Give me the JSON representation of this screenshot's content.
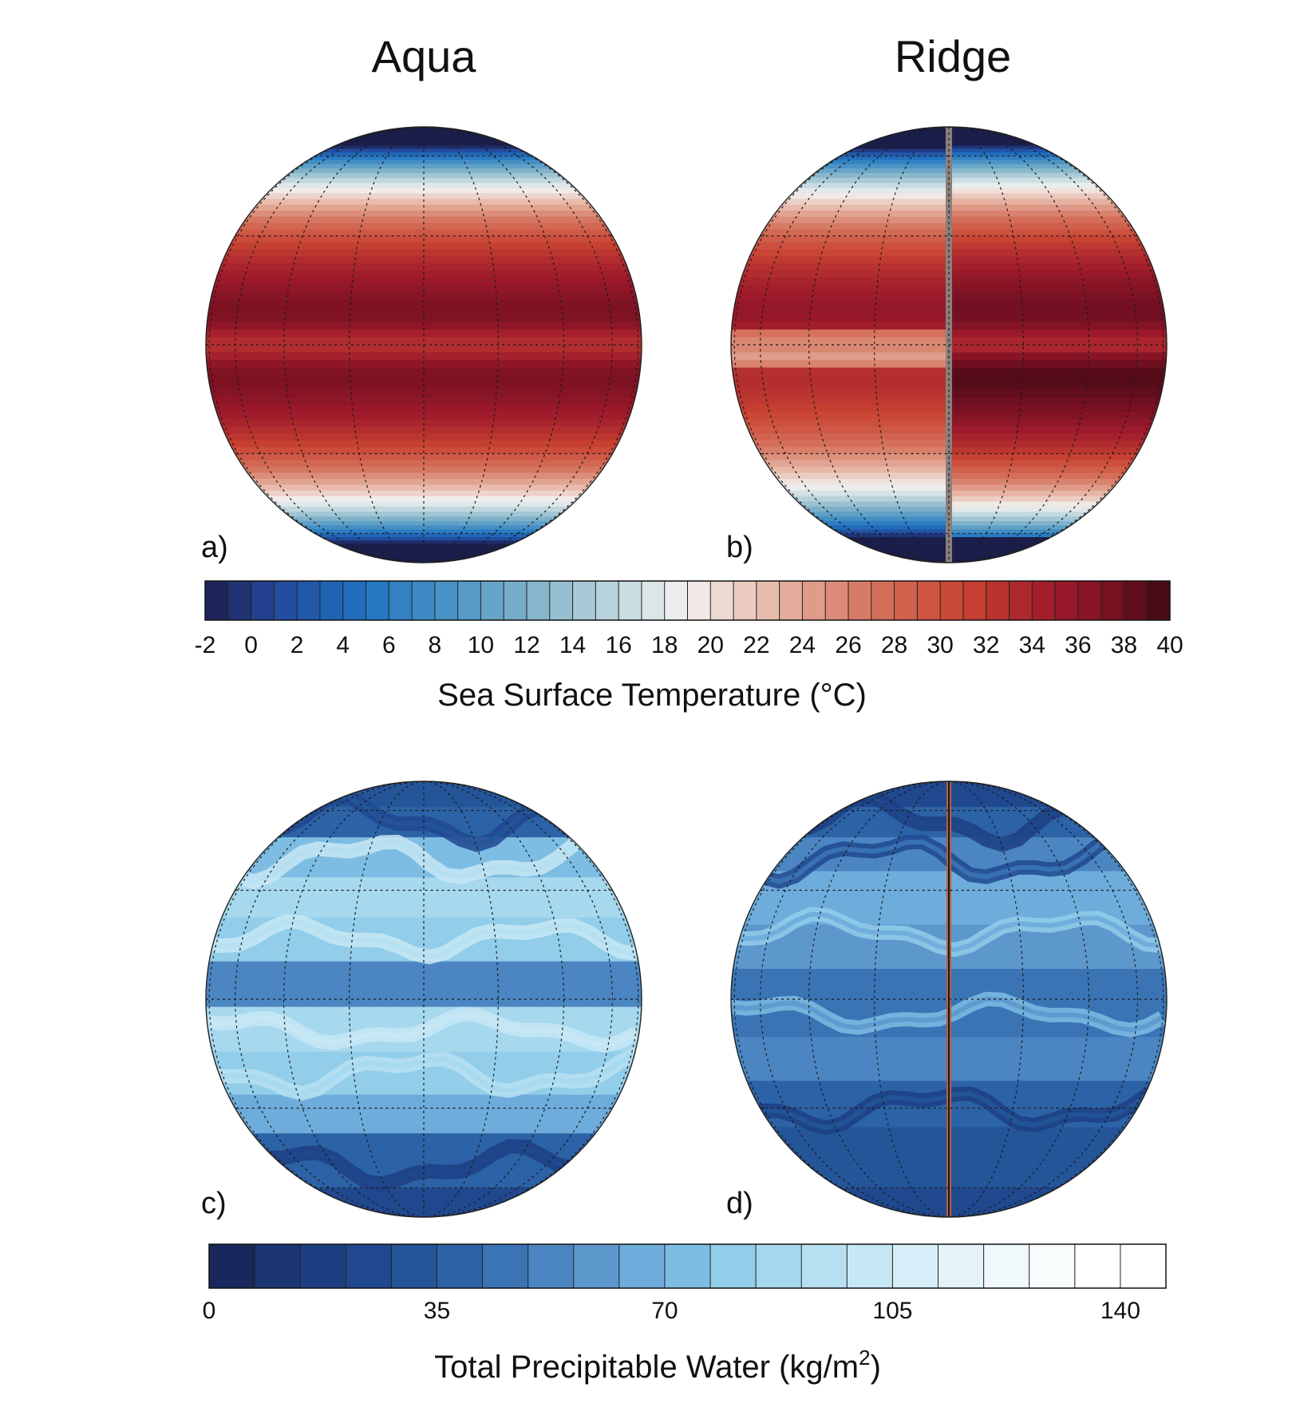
{
  "columns": [
    {
      "title": "Aqua"
    },
    {
      "title": "Ridge"
    }
  ],
  "panels": [
    {
      "label": "a)",
      "variable": "sst",
      "ridge": false
    },
    {
      "label": "b)",
      "variable": "sst",
      "ridge": true
    },
    {
      "label": "c)",
      "variable": "tpw",
      "ridge": false
    },
    {
      "label": "d)",
      "variable": "tpw",
      "ridge": true
    }
  ],
  "sst_colorbar": {
    "title": "Sea Surface Temperature (°C)",
    "min": -2,
    "max": 40,
    "step": 1,
    "tick_labels": [
      "-2",
      "0",
      "2",
      "4",
      "6",
      "8",
      "10",
      "12",
      "14",
      "16",
      "18",
      "20",
      "22",
      "24",
      "26",
      "28",
      "30",
      "32",
      "34",
      "36",
      "38",
      "40"
    ],
    "color_stops": [
      {
        "v": -2,
        "c": "#1b1e4b"
      },
      {
        "v": 1,
        "c": "#24479b"
      },
      {
        "v": 5,
        "c": "#1f74c2"
      },
      {
        "v": 9,
        "c": "#4e96c5"
      },
      {
        "v": 13,
        "c": "#8dbacc"
      },
      {
        "v": 17,
        "c": "#d4e2e6"
      },
      {
        "v": 19,
        "c": "#f3f1f0"
      },
      {
        "v": 23,
        "c": "#e6b4a3"
      },
      {
        "v": 27,
        "c": "#d5735d"
      },
      {
        "v": 31,
        "c": "#c94332"
      },
      {
        "v": 35,
        "c": "#9e1a2b"
      },
      {
        "v": 38,
        "c": "#6e0f20"
      },
      {
        "v": 40,
        "c": "#3d0712"
      }
    ]
  },
  "tpw_colorbar": {
    "title": "Total Precipitable Water (kg/m",
    "title_superscript": "2",
    "title_suffix": ")",
    "min": 0,
    "max": 147,
    "step": 7,
    "tick_labels": [
      "0",
      "35",
      "70",
      "105",
      "140"
    ],
    "colors": [
      "#18285c",
      "#1b3573",
      "#1d3f82",
      "#20488f",
      "#245599",
      "#2c62a6",
      "#3a74b5",
      "#4b86c2",
      "#5d98cd",
      "#6dacdb",
      "#7dbde3",
      "#92cdea",
      "#a6d8ee",
      "#b6e0f1",
      "#c6e7f4",
      "#d5eef7",
      "#e3f3f9",
      "#eff8fb",
      "#f9fcfd",
      "#ffffff",
      "#ffffff"
    ]
  }
}
